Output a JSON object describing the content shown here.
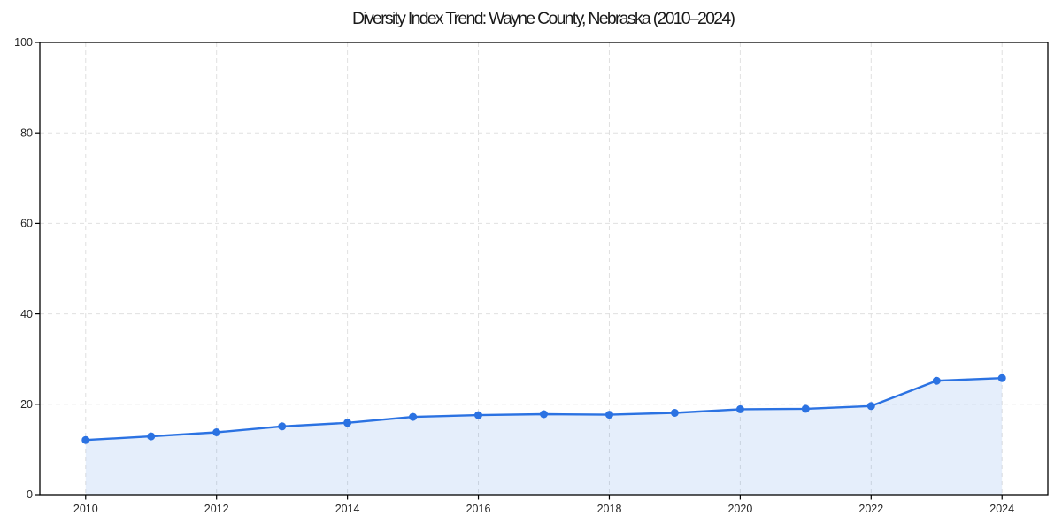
{
  "chart_data": {
    "type": "line",
    "title": "Diversity Index Trend: Wayne County, Nebraska (2010–2024)",
    "series_name": "Diversity Index",
    "x": [
      2010,
      2011,
      2012,
      2013,
      2014,
      2015,
      2016,
      2017,
      2018,
      2019,
      2020,
      2021,
      2022,
      2023,
      2024
    ],
    "values": [
      12.1,
      12.9,
      13.8,
      15.1,
      15.9,
      17.2,
      17.6,
      17.8,
      17.7,
      18.1,
      18.9,
      19.0,
      19.6,
      25.2,
      25.8
    ],
    "xlabel": "",
    "ylabel": "",
    "ylim": [
      0,
      100
    ],
    "yticks": [
      0,
      20,
      40,
      60,
      80,
      100
    ],
    "ytick_labels": [
      "0",
      "20",
      "40",
      "60",
      "80",
      "100"
    ],
    "xticks": [
      2010,
      2012,
      2014,
      2016,
      2018,
      2020,
      2022,
      2024
    ],
    "xtick_labels": [
      "2010",
      "2012",
      "2014",
      "2016",
      "2018",
      "2020",
      "2022",
      "2024"
    ],
    "x_margin_frac": 0.05,
    "grid": "dashed",
    "legend_position": "none",
    "marker": "circle",
    "area_fill": true,
    "colors": {
      "line": "#2b72e2",
      "marker": "#2b72e2",
      "fill_rgba": "rgba(43,114,226,0.12)",
      "grid": "#e0e0e0",
      "spine": "#000000",
      "title_text": "#1a1a1a",
      "tick_text": "#262626",
      "background": "#ffffff"
    }
  }
}
